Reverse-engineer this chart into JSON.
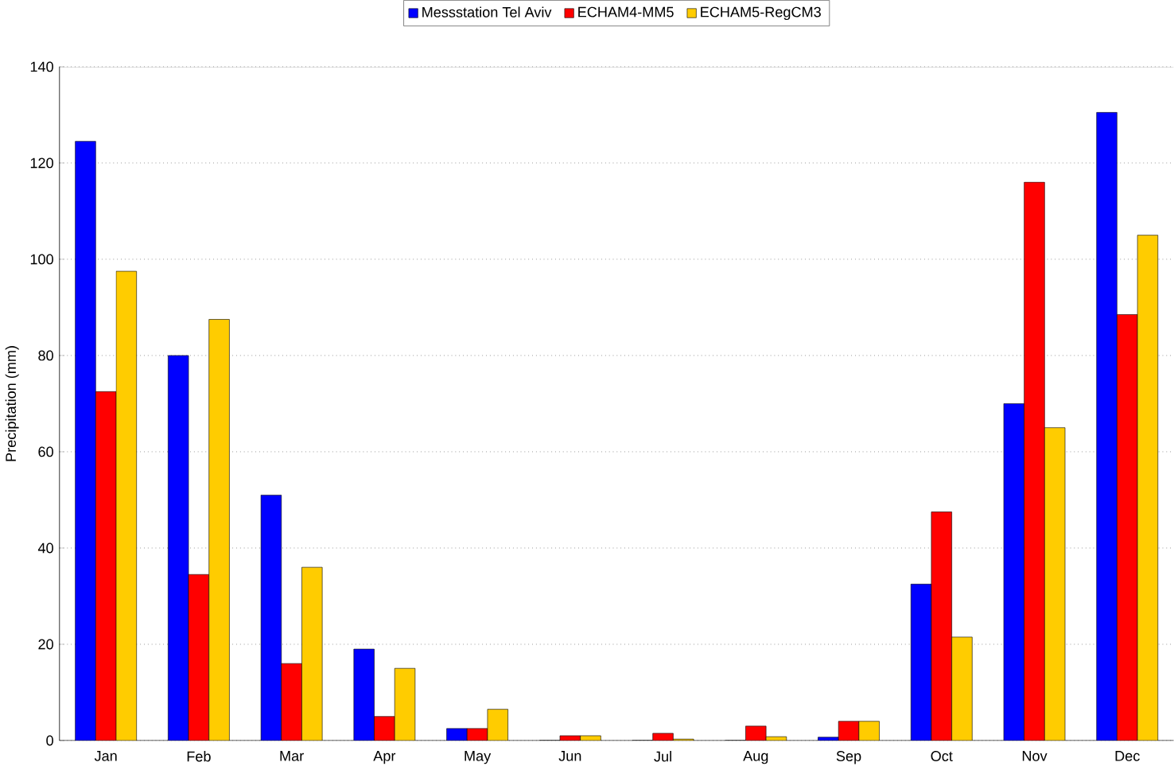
{
  "chart_data": {
    "type": "bar",
    "ylabel": "Precipitation (mm)",
    "categories": [
      "Jan",
      "Feb",
      "Mar",
      "Apr",
      "May",
      "Jun",
      "Jul",
      "Aug",
      "Sep",
      "Oct",
      "Nov",
      "Dec"
    ],
    "series": [
      {
        "name": "Messstation Tel Aviv",
        "color": "#0000ff",
        "values": [
          124.5,
          80,
          51,
          19,
          2.5,
          0,
          0,
          0,
          0.7,
          32.5,
          70,
          130.5
        ]
      },
      {
        "name": "ECHAM4-MM5",
        "color": "#ff0000",
        "values": [
          72.5,
          34.5,
          16,
          5,
          2.5,
          1,
          1.5,
          3,
          4,
          47.5,
          116,
          88.5
        ]
      },
      {
        "name": "ECHAM5-RegCM3",
        "color": "#ffcc00",
        "values": [
          97.5,
          87.5,
          36,
          15,
          6.5,
          1,
          0.3,
          0.8,
          4,
          21.5,
          65,
          105
        ]
      }
    ],
    "ylim": [
      0,
      140
    ],
    "yticks": [
      0,
      20,
      40,
      60,
      80,
      100,
      120,
      140
    ],
    "grid": "y",
    "legend": "top"
  }
}
